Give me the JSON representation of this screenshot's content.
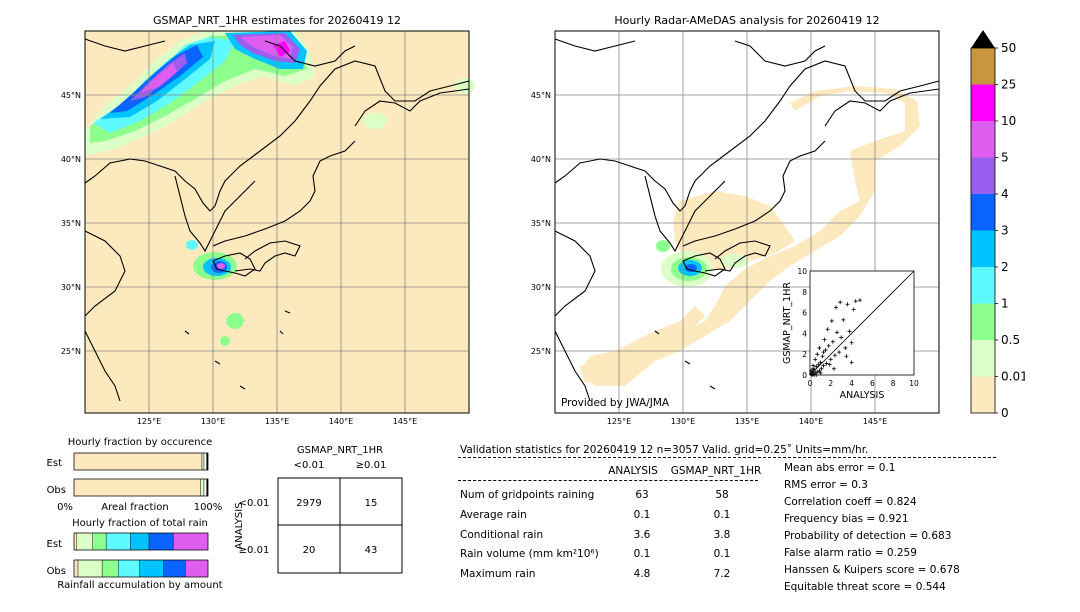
{
  "map_left": {
    "title": "GSMAP_NRT_1HR estimates for 20260419 12",
    "lat_labels": [
      "45°N",
      "40°N",
      "35°N",
      "30°N",
      "25°N"
    ],
    "lon_labels": [
      "125°E",
      "130°E",
      "135°E",
      "140°E",
      "145°E"
    ]
  },
  "map_right": {
    "title": "Hourly Radar-AMeDAS analysis for 20260419 12",
    "lat_labels": [
      "45°N",
      "40°N",
      "35°N",
      "30°N",
      "25°N"
    ],
    "lon_labels": [
      "125°E",
      "130°E",
      "135°E",
      "140°E",
      "145°E"
    ],
    "credit": "Provided by JWA/JMA"
  },
  "colorbar": {
    "ticks": [
      "50",
      "25",
      "10",
      "5",
      "4",
      "3",
      "2",
      "1",
      "0.5",
      "0.01",
      "0"
    ],
    "colors": [
      "#c8963c",
      "#ff00ff",
      "#de5ef0",
      "#9b5ff0",
      "#0a64ff",
      "#00c3ff",
      "#5ffaff",
      "#8cff8c",
      "#dcffc8",
      "#fde9be"
    ]
  },
  "chart_data": [
    {
      "type": "scatter",
      "name_hint": "inset",
      "xlabel": "ANALYSIS",
      "ylabel": "GSMAP_NRT_1HR",
      "xlim": [
        0,
        10
      ],
      "ylim": [
        0,
        10
      ],
      "ticks": [
        "0",
        "2",
        "4",
        "6",
        "8",
        "10"
      ],
      "points": [
        [
          0.1,
          0.1
        ],
        [
          0.2,
          0.3
        ],
        [
          0.3,
          0.1
        ],
        [
          0.4,
          0.5
        ],
        [
          0.5,
          0.2
        ],
        [
          0.6,
          0.8
        ],
        [
          0.7,
          0.3
        ],
        [
          0.8,
          1.0
        ],
        [
          0.9,
          0.4
        ],
        [
          1.0,
          1.2
        ],
        [
          1.1,
          0.6
        ],
        [
          1.2,
          1.8
        ],
        [
          1.3,
          0.9
        ],
        [
          1.5,
          2.4
        ],
        [
          1.6,
          1.1
        ],
        [
          1.8,
          2.8
        ],
        [
          2.0,
          1.5
        ],
        [
          2.2,
          3.2
        ],
        [
          2.4,
          1.9
        ],
        [
          2.6,
          4.1
        ],
        [
          2.8,
          2.2
        ],
        [
          3.0,
          3.6
        ],
        [
          3.2,
          5.3
        ],
        [
          3.4,
          2.6
        ],
        [
          3.6,
          6.8
        ],
        [
          3.8,
          4.2
        ],
        [
          4.0,
          3.1
        ],
        [
          4.2,
          6.3
        ],
        [
          4.4,
          7.1
        ],
        [
          4.8,
          7.2
        ],
        [
          0.3,
          0.9
        ],
        [
          0.5,
          1.5
        ],
        [
          0.7,
          2.0
        ],
        [
          0.9,
          2.6
        ],
        [
          1.4,
          3.4
        ],
        [
          1.7,
          4.4
        ],
        [
          2.1,
          5.2
        ],
        [
          2.5,
          6.5
        ],
        [
          2.9,
          7.0
        ],
        [
          0.2,
          0.0
        ],
        [
          0.4,
          0.0
        ],
        [
          0.6,
          0.0
        ],
        [
          0.1,
          0.4
        ],
        [
          0.3,
          0.6
        ],
        [
          1.9,
          1.0
        ],
        [
          2.3,
          0.6
        ],
        [
          3.5,
          1.8
        ],
        [
          4.0,
          1.2
        ],
        [
          1.0,
          0.2
        ],
        [
          1.3,
          2.2
        ]
      ]
    },
    {
      "type": "bar",
      "name_hint": "occurrence",
      "title": "Hourly fraction by occurence",
      "categories": [
        "Est",
        "Obs"
      ],
      "series": [
        {
          "values": [
            0.955,
            0.945
          ]
        },
        {
          "values": [
            0.015,
            0.025
          ]
        },
        {
          "values": [
            0.02,
            0.02
          ]
        },
        {
          "values": [
            0.01,
            0.01
          ]
        }
      ],
      "colors": [
        "#fde9be",
        "#dcffc8",
        "#ffffff",
        "#000000"
      ],
      "xlabel": "Areal fraction",
      "xticks": [
        "0%",
        "100%"
      ]
    },
    {
      "type": "bar",
      "name_hint": "amount",
      "title": "Hourly fraction of total rain",
      "categories": [
        "Est",
        "Obs"
      ],
      "series": [
        {
          "values": [
            0.02,
            0.03
          ]
        },
        {
          "values": [
            0.12,
            0.18
          ]
        },
        {
          "values": [
            0.1,
            0.12
          ]
        },
        {
          "values": [
            0.18,
            0.16
          ]
        },
        {
          "values": [
            0.14,
            0.18
          ]
        },
        {
          "values": [
            0.18,
            0.16
          ]
        },
        {
          "values": [
            0.26,
            0.17
          ]
        }
      ],
      "colors": [
        "#fde9be",
        "#dcffc8",
        "#8cff8c",
        "#5ffaff",
        "#00c3ff",
        "#0a64ff",
        "#de5ef0"
      ],
      "xlabel": "Rainfall accumulation by amount"
    }
  ],
  "contingency": {
    "title": "GSMAP_NRT_1HR",
    "col_lt": "<0.01",
    "col_ge": "≥0.01",
    "row_label": "ANALYSIS",
    "row_lt": "<0.01",
    "row_ge": "≥0.01",
    "c11": "2979",
    "c12": "15",
    "c21": "20",
    "c22": "43"
  },
  "validation": {
    "header": "Validation statistics for 20260419 12  n=3057 Valid. grid=0.25˚ Units=mm/hr.",
    "col_analysis": "ANALYSIS",
    "col_gsmap": "GSMAP_NRT_1HR",
    "rows": [
      {
        "label": "Num of gridpoints raining",
        "a": "63",
        "g": "58"
      },
      {
        "label": "Average rain",
        "a": "0.1",
        "g": "0.1"
      },
      {
        "label": "Conditional rain",
        "a": "3.6",
        "g": "3.8"
      },
      {
        "label": "Rain volume (mm km²10⁶)",
        "a": "0.1",
        "g": "0.1"
      },
      {
        "label": "Maximum rain",
        "a": "4.8",
        "g": "7.2"
      }
    ],
    "scores": [
      "Mean abs error =    0.1",
      "RMS error =    0.3",
      "Correlation coeff =  0.824",
      "Frequency bias =  0.921",
      "Probability of detection =  0.683",
      "False alarm ratio =  0.259",
      "Hanssen & Kuipers score =  0.678",
      "Equitable threat score =  0.544"
    ]
  }
}
